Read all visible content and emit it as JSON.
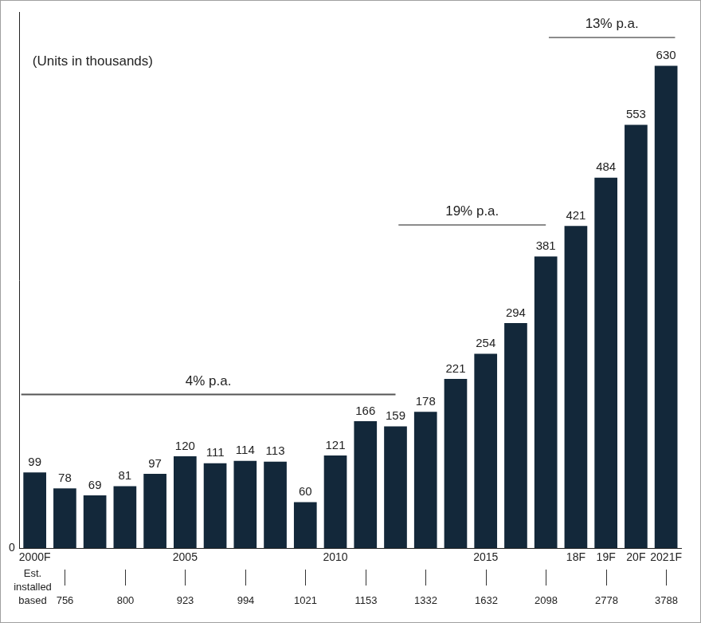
{
  "chart_data": {
    "type": "bar",
    "categories": [
      "2000F",
      null,
      null,
      null,
      null,
      "2005",
      null,
      null,
      null,
      null,
      "2010",
      null,
      null,
      null,
      null,
      "2015",
      null,
      null,
      "18F",
      "19F",
      "20F",
      "2021F"
    ],
    "values": [
      99,
      78,
      69,
      81,
      97,
      120,
      111,
      114,
      113,
      60,
      121,
      166,
      159,
      178,
      221,
      254,
      294,
      381,
      421,
      484,
      553,
      630
    ],
    "color": "#13283a",
    "ylim": [
      0,
      700
    ],
    "yticks": [
      0
    ],
    "grid": false,
    "data_labels": true,
    "annotations": [
      {
        "text": "(Units in thousands)"
      },
      {
        "text": "4% p.a."
      },
      {
        "text": "19% p.a."
      },
      {
        "text": "13% p.a."
      }
    ],
    "installed_base": {
      "label": "Est. installed based",
      "values": [
        null,
        756,
        null,
        800,
        null,
        923,
        null,
        994,
        null,
        1021,
        null,
        1153,
        null,
        1332,
        null,
        1632,
        null,
        2098,
        null,
        2778,
        null,
        3788
      ]
    }
  }
}
